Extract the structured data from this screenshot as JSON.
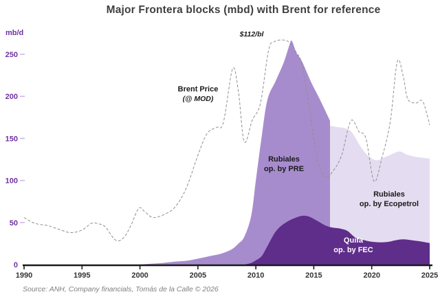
{
  "title": "Major Frontera blocks (mbd) with Brent for reference",
  "y_axis": {
    "unit": "mb/d",
    "ticks": [
      0,
      50,
      100,
      150,
      200,
      250
    ]
  },
  "x_axis": {
    "ticks": [
      1990,
      1995,
      2000,
      2005,
      2010,
      2015,
      2020,
      2025
    ]
  },
  "annotations": {
    "brent_line1": "Brent Price",
    "brent_line2": "(@ MOD)",
    "price_peak": "$112/bl",
    "pre_line1": "Rubiales",
    "pre_line2": "op. by PRE",
    "eco_line1": "Rubiales",
    "eco_line2": "op. by Ecopetrol",
    "quifa_line1": "Quifa",
    "quifa_line2": "op. by FEC"
  },
  "source": "Source: ANH, Company financials, Tomás de la Calle © 2026",
  "colors": {
    "title_text": "#3f3f3f",
    "axis_purple": "#7030a0",
    "tick_dash": "#c9b3e0",
    "axis_line": "#1a1a1a",
    "x_label": "#333333",
    "area_pre": "#a78ccd",
    "area_eco": "#e4dcf0",
    "area_quifa": "#5f2d8a",
    "brent_line": "#8f8f8f",
    "source_text": "#808080"
  },
  "chart_data": {
    "type": "area",
    "title": "Major Frontera blocks (mbd) with Brent for reference",
    "xlabel": "",
    "ylabel": "mb/d",
    "x_range": [
      1990,
      2025
    ],
    "y_range": [
      0,
      250
    ],
    "grid": false,
    "legend": "in-plot text labels",
    "stacking": "Quifa is the bottom band; Rubiales series values below are the cumulative stack top (Quifa + Rubiales)",
    "series": [
      {
        "id": "rubiales_pre",
        "name": "Rubiales op. by PRE",
        "type": "area",
        "color": "#a78ccd",
        "values_are": "stack_top_total",
        "points": [
          [
            2000,
            0
          ],
          [
            2001,
            1
          ],
          [
            2002,
            2
          ],
          [
            2003,
            3.5
          ],
          [
            2004,
            4.5
          ],
          [
            2005,
            7
          ],
          [
            2006,
            10
          ],
          [
            2007,
            13
          ],
          [
            2007.9,
            18
          ],
          [
            2008.5,
            25
          ],
          [
            2009,
            33
          ],
          [
            2009.6,
            58
          ],
          [
            2010,
            100
          ],
          [
            2010.5,
            152
          ],
          [
            2011,
            196
          ],
          [
            2011.7,
            218
          ],
          [
            2012.4,
            240
          ],
          [
            2012.9,
            261
          ],
          [
            2013.1,
            266
          ],
          [
            2013.5,
            252
          ],
          [
            2014,
            241
          ],
          [
            2014.8,
            216
          ],
          [
            2015.5,
            197
          ],
          [
            2016.4,
            171
          ]
        ]
      },
      {
        "id": "rubiales_eco",
        "name": "Rubiales op. by Ecopetrol",
        "type": "area",
        "color": "#e4dcf0",
        "values_are": "stack_top_total",
        "points": [
          [
            2016.4,
            165
          ],
          [
            2017,
            163.5
          ],
          [
            2017.7,
            162
          ],
          [
            2018.3,
            157
          ],
          [
            2019,
            141
          ],
          [
            2019.7,
            129
          ],
          [
            2020.4,
            124
          ],
          [
            2021,
            127
          ],
          [
            2021.7,
            131
          ],
          [
            2022.4,
            134.5
          ],
          [
            2023,
            131
          ],
          [
            2023.8,
            128
          ],
          [
            2024.4,
            127
          ],
          [
            2025,
            126
          ]
        ]
      },
      {
        "id": "quifa",
        "name": "Quifa op. by FEC",
        "type": "area",
        "color": "#5f2d8a",
        "values_are": "band_height",
        "points": [
          [
            2009,
            0
          ],
          [
            2009.6,
            2
          ],
          [
            2010,
            5
          ],
          [
            2010.5,
            10
          ],
          [
            2011,
            22
          ],
          [
            2011.6,
            37
          ],
          [
            2012.1,
            45
          ],
          [
            2012.7,
            51
          ],
          [
            2013.3,
            55
          ],
          [
            2014,
            58
          ],
          [
            2014.6,
            57
          ],
          [
            2015.3,
            52
          ],
          [
            2016,
            46.5
          ],
          [
            2016.6,
            44
          ],
          [
            2017.2,
            43
          ],
          [
            2017.9,
            40
          ],
          [
            2018.5,
            33
          ],
          [
            2019.1,
            30
          ],
          [
            2019.8,
            27.5
          ],
          [
            2020.6,
            26.5
          ],
          [
            2021.4,
            27
          ],
          [
            2022.1,
            29
          ],
          [
            2022.7,
            30
          ],
          [
            2023.4,
            29
          ],
          [
            2024.2,
            27.5
          ],
          [
            2025,
            25.5
          ]
        ]
      },
      {
        "id": "brent",
        "name": "Brent Price (@ MOD)",
        "type": "line",
        "color": "#8f8f8f",
        "axis_note": "price line overlaid without a visible right axis; plateau annotated $112/bl",
        "points": [
          [
            1990,
            56
          ],
          [
            1990.6,
            51
          ],
          [
            1991.2,
            48
          ],
          [
            1992,
            46.5
          ],
          [
            1993,
            42
          ],
          [
            1994,
            38
          ],
          [
            1995,
            41
          ],
          [
            1995.8,
            49
          ],
          [
            1996.4,
            48.5
          ],
          [
            1997,
            45
          ],
          [
            1997.9,
            29
          ],
          [
            1998.6,
            32
          ],
          [
            1999.2,
            46
          ],
          [
            1999.9,
            67
          ],
          [
            2000.4,
            63
          ],
          [
            2001.1,
            56
          ],
          [
            2002,
            59
          ],
          [
            2003,
            68
          ],
          [
            2004,
            91
          ],
          [
            2005,
            130
          ],
          [
            2005.8,
            156
          ],
          [
            2006.6,
            163
          ],
          [
            2007.2,
            169
          ],
          [
            2008,
            233
          ],
          [
            2008.5,
            205
          ],
          [
            2009,
            146
          ],
          [
            2009.7,
            172
          ],
          [
            2010.4,
            192
          ],
          [
            2011.1,
            255
          ],
          [
            2011.6,
            265
          ],
          [
            2012.4,
            267
          ],
          [
            2013,
            263
          ],
          [
            2013.5,
            252
          ],
          [
            2014,
            237
          ],
          [
            2014.7,
            178
          ],
          [
            2015.3,
            125
          ],
          [
            2016,
            104
          ],
          [
            2016.7,
            112
          ],
          [
            2017.4,
            130
          ],
          [
            2018.2,
            171
          ],
          [
            2018.9,
            158
          ],
          [
            2019.5,
            150
          ],
          [
            2020.2,
            99
          ],
          [
            2020.9,
            128
          ],
          [
            2021.6,
            170
          ],
          [
            2022.2,
            241
          ],
          [
            2022.7,
            225
          ],
          [
            2023.1,
            197
          ],
          [
            2023.8,
            192
          ],
          [
            2024.4,
            194
          ],
          [
            2025,
            166
          ]
        ]
      }
    ]
  }
}
